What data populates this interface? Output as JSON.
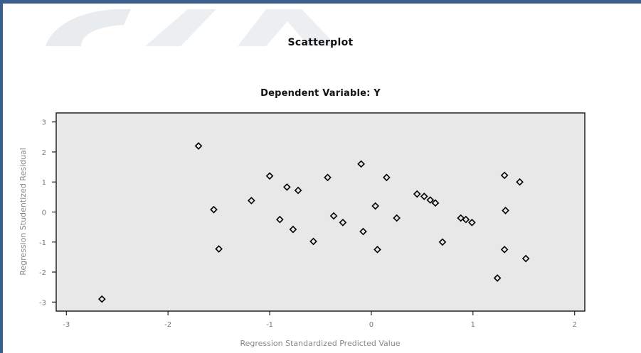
{
  "chart_data": {
    "type": "scatter",
    "title": "Scatterplot",
    "subtitle": "Dependent Variable: Y",
    "xlabel": "Regression Standardized Predicted Value",
    "ylabel": "Regression Studentized Residual",
    "xlim": [
      -3.1,
      2.1
    ],
    "ylim": [
      -3.3,
      3.3
    ],
    "xticks": [
      "-3",
      "-2",
      "-1",
      "0",
      "1",
      "2"
    ],
    "xtick_values": [
      -3,
      -2,
      -1,
      0,
      1,
      2
    ],
    "yticks": [
      "3",
      "2",
      "1",
      "0",
      "-1",
      "-2",
      "-3"
    ],
    "ytick_values": [
      3,
      2,
      1,
      0,
      -1,
      -2,
      -3
    ],
    "grid": false,
    "plot_background": "#e8e8e8",
    "marker_color": "#000000",
    "points": [
      {
        "x": -2.65,
        "y": -2.9
      },
      {
        "x": -1.7,
        "y": 2.2
      },
      {
        "x": -1.55,
        "y": 0.08
      },
      {
        "x": -1.5,
        "y": -1.23
      },
      {
        "x": -1.18,
        "y": 0.38
      },
      {
        "x": -1.0,
        "y": 1.2
      },
      {
        "x": -0.9,
        "y": -0.25
      },
      {
        "x": -0.83,
        "y": 0.83
      },
      {
        "x": -0.77,
        "y": -0.58
      },
      {
        "x": -0.72,
        "y": 0.72
      },
      {
        "x": -0.57,
        "y": -0.98
      },
      {
        "x": -0.43,
        "y": 1.15
      },
      {
        "x": -0.37,
        "y": -0.13
      },
      {
        "x": -0.28,
        "y": -0.35
      },
      {
        "x": -0.1,
        "y": 1.6
      },
      {
        "x": -0.08,
        "y": -0.65
      },
      {
        "x": 0.04,
        "y": 0.2
      },
      {
        "x": 0.06,
        "y": -1.25
      },
      {
        "x": 0.15,
        "y": 1.15
      },
      {
        "x": 0.25,
        "y": -0.2
      },
      {
        "x": 0.45,
        "y": 0.6
      },
      {
        "x": 0.52,
        "y": 0.52
      },
      {
        "x": 0.58,
        "y": 0.4
      },
      {
        "x": 0.63,
        "y": 0.3
      },
      {
        "x": 0.7,
        "y": -1.0
      },
      {
        "x": 0.88,
        "y": -0.2
      },
      {
        "x": 0.93,
        "y": -0.25
      },
      {
        "x": 0.99,
        "y": -0.35
      },
      {
        "x": 1.24,
        "y": -2.2
      },
      {
        "x": 1.31,
        "y": 1.22
      },
      {
        "x": 1.32,
        "y": 0.05
      },
      {
        "x": 1.31,
        "y": -1.25
      },
      {
        "x": 1.46,
        "y": 1.0
      },
      {
        "x": 1.52,
        "y": -1.55
      }
    ]
  }
}
